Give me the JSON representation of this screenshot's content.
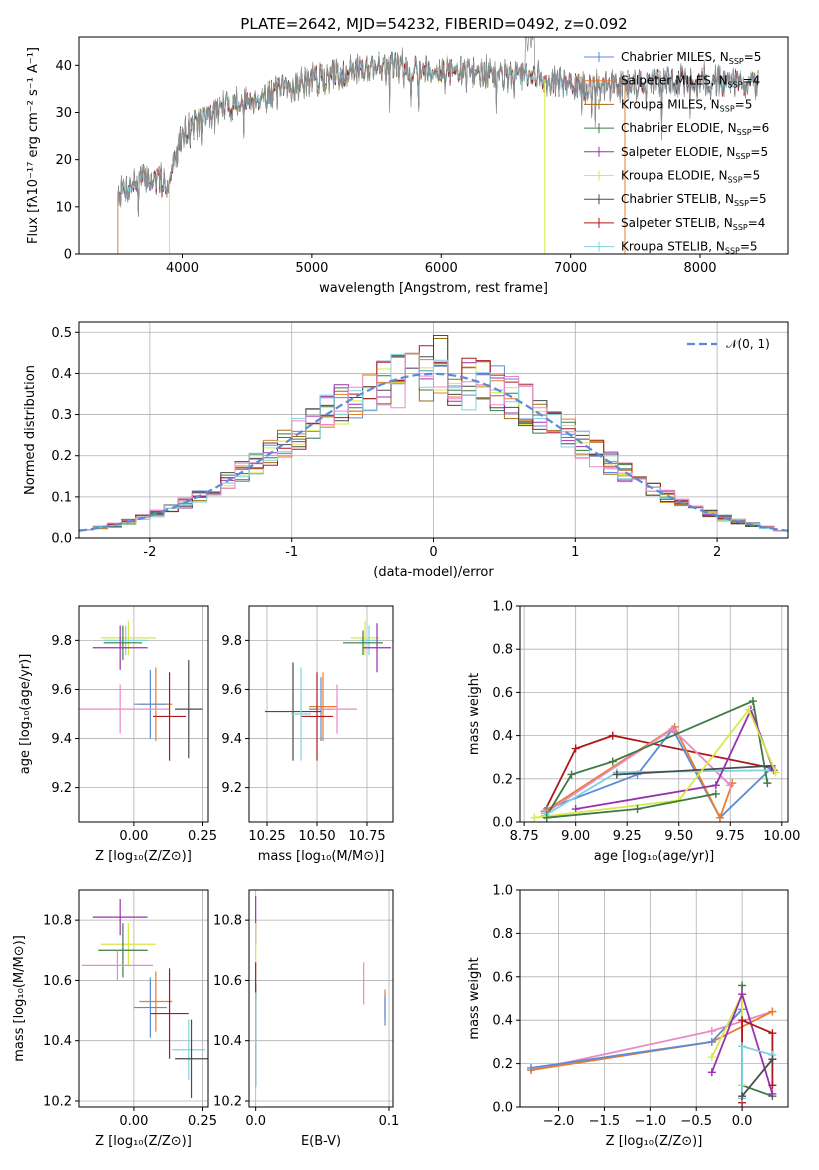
{
  "title": "PLATE=2642, MJD=54232, FIBERID=0492, z=0.092",
  "colors": {
    "Chabrier MILES": "#5b8bd6",
    "Salpeter MILES": "#e87f2a",
    "Kroupa MILES": "#a06a12",
    "Chabrier ELODIE": "#3d7a45",
    "Salpeter ELODIE": "#9a30b0",
    "Kroupa ELODIE": "#d8e84a",
    "Chabrier STELIB": "#4a4a4a",
    "Salpeter STELIB": "#b01818",
    "Kroupa STELIB": "#7fd2e0",
    "Pink (extra)": "#e88ac8",
    "Normal": "#5b8bd6"
  },
  "chart_data": [
    {
      "id": "spectrum",
      "type": "line",
      "xlabel": "wavelength [Angstrom, rest frame]",
      "ylabel": "Flux [fλ10⁻¹⁷ erg cm⁻² s⁻¹ A⁻¹]",
      "xlim": [
        3200,
        8680
      ],
      "ylim": [
        0,
        46
      ],
      "xticks": [
        4000,
        5000,
        6000,
        7000,
        8000
      ],
      "yticks": [
        0,
        10,
        20,
        30,
        40
      ],
      "legend_position": "top-right",
      "legend": [
        {
          "label": "Chabrier MILES, N",
          "sub": "SSP",
          "suffix": "=5",
          "color": "#5b8bd6"
        },
        {
          "label": "Salpeter MILES, N",
          "sub": "SSP",
          "suffix": "=4",
          "color": "#e87f2a"
        },
        {
          "label": "Kroupa MILES, N",
          "sub": "SSP",
          "suffix": "=5",
          "color": "#a06a12"
        },
        {
          "label": "Chabrier ELODIE, N",
          "sub": "SSP",
          "suffix": "=6",
          "color": "#3d7a45"
        },
        {
          "label": "Salpeter ELODIE, N",
          "sub": "SSP",
          "suffix": "=5",
          "color": "#9a30b0"
        },
        {
          "label": "Kroupa ELODIE, N",
          "sub": "SSP",
          "suffix": "=5",
          "color": "#d8e84a"
        },
        {
          "label": "Chabrier STELIB, N",
          "sub": "SSP",
          "suffix": "=5",
          "color": "#4a4a4a"
        },
        {
          "label": "Salpeter STELIB, N",
          "sub": "SSP",
          "suffix": "=4",
          "color": "#b01818"
        },
        {
          "label": "Kroupa STELIB, N",
          "sub": "SSP",
          "suffix": "=5",
          "color": "#7fd2e0"
        }
      ],
      "data_range": [
        3500,
        8450
      ],
      "continuum": [
        [
          3500,
          13
        ],
        [
          3700,
          16
        ],
        [
          3900,
          15
        ],
        [
          4000,
          26
        ],
        [
          4300,
          31
        ],
        [
          4700,
          34
        ],
        [
          5000,
          37
        ],
        [
          5500,
          40
        ],
        [
          6000,
          39
        ],
        [
          6500,
          38
        ],
        [
          6800,
          37
        ],
        [
          7100,
          35
        ],
        [
          7400,
          36
        ],
        [
          8000,
          37
        ],
        [
          8450,
          36
        ]
      ],
      "cutoffs": [
        {
          "x": 3500,
          "model": "Salpeter MILES"
        },
        {
          "x": 3900,
          "model": "Kroupa ELODIE"
        },
        {
          "x": 6800,
          "model": "Kroupa ELODIE"
        },
        {
          "x": 7420,
          "model": "Salpeter MILES"
        }
      ]
    },
    {
      "id": "residuals",
      "type": "histogram",
      "xlabel": "(data-model)/error",
      "ylabel": "Normed distribution",
      "xlim": [
        -2.5,
        2.5
      ],
      "ylim": [
        0,
        0.525
      ],
      "xticks": [
        -2,
        -1,
        0,
        1,
        2
      ],
      "yticks": [
        0.0,
        0.1,
        0.2,
        0.3,
        0.4,
        0.5
      ],
      "legend_position": "top-right",
      "normal_label": "𝒩(0, 1)",
      "bin_width": 0.1,
      "peak": 0.5
    },
    {
      "id": "age-vs-Z",
      "type": "errorbar",
      "xlabel": "Z [log₁₀(Z/Z⊙)]",
      "ylabel": "age  [log₁₀(age/yr)]",
      "xlim": [
        -0.2,
        0.27
      ],
      "ylim": [
        9.06,
        9.94
      ],
      "xticks": [
        0.0,
        0.25
      ],
      "xtick_labels": [
        "0.00",
        "0.25"
      ],
      "yticks": [
        9.2,
        9.4,
        9.6,
        9.8
      ],
      "points": [
        {
          "x": -0.02,
          "y": 9.81,
          "ex": 0.1,
          "ey": 0.07,
          "c": "#d8e84a"
        },
        {
          "x": -0.03,
          "y": 9.8,
          "ex": 0.08,
          "ey": 0.06,
          "c": "#7fd2e0"
        },
        {
          "x": -0.04,
          "y": 9.79,
          "ex": 0.07,
          "ey": 0.07,
          "c": "#3d7a45"
        },
        {
          "x": -0.05,
          "y": 9.77,
          "ex": 0.1,
          "ey": 0.09,
          "c": "#9a30b0"
        },
        {
          "x": 0.08,
          "y": 9.54,
          "ex": 0.06,
          "ey": 0.15,
          "c": "#e87f2a"
        },
        {
          "x": 0.06,
          "y": 9.54,
          "ex": 0.06,
          "ey": 0.14,
          "c": "#5b8bd6"
        },
        {
          "x": -0.05,
          "y": 9.52,
          "ex": 0.18,
          "ey": 0.1,
          "c": "#e88ac8"
        },
        {
          "x": 0.13,
          "y": 9.49,
          "ex": 0.06,
          "ey": 0.18,
          "c": "#b01818"
        },
        {
          "x": 0.2,
          "y": 9.52,
          "ex": 0.05,
          "ey": 0.2,
          "c": "#4a4a4a"
        }
      ]
    },
    {
      "id": "age-vs-mass",
      "type": "errorbar",
      "xlabel": "mass [log₁₀(M/M⊙)]",
      "ylabel": "",
      "xlim": [
        10.16,
        10.88
      ],
      "ylim": [
        9.06,
        9.94
      ],
      "xticks": [
        10.25,
        10.5,
        10.75
      ],
      "xtick_labels": [
        "10.25",
        "10.50",
        "10.75"
      ],
      "yticks": [
        9.2,
        9.4,
        9.6,
        9.8
      ],
      "points": [
        {
          "x": 10.74,
          "y": 9.81,
          "ex": 0.07,
          "ey": 0.07,
          "c": "#d8e84a"
        },
        {
          "x": 10.76,
          "y": 9.8,
          "ex": 0.05,
          "ey": 0.06,
          "c": "#7fd2e0"
        },
        {
          "x": 10.73,
          "y": 9.79,
          "ex": 0.1,
          "ey": 0.05,
          "c": "#3d7a45"
        },
        {
          "x": 10.8,
          "y": 9.77,
          "ex": 0.07,
          "ey": 0.1,
          "c": "#9a30b0"
        },
        {
          "x": 10.53,
          "y": 9.53,
          "ex": 0.07,
          "ey": 0.14,
          "c": "#e87f2a"
        },
        {
          "x": 10.52,
          "y": 9.52,
          "ex": 0.06,
          "ey": 0.13,
          "c": "#5b8bd6"
        },
        {
          "x": 10.6,
          "y": 9.52,
          "ex": 0.1,
          "ey": 0.1,
          "c": "#e88ac8"
        },
        {
          "x": 10.5,
          "y": 9.49,
          "ex": 0.08,
          "ey": 0.18,
          "c": "#b01818"
        },
        {
          "x": 10.38,
          "y": 9.51,
          "ex": 0.14,
          "ey": 0.2,
          "c": "#4a4a4a"
        },
        {
          "x": 10.42,
          "y": 9.5,
          "ex": 0.05,
          "ey": 0.19,
          "c": "#7fd2e0"
        }
      ]
    },
    {
      "id": "weight-vs-age",
      "type": "line",
      "xlabel": "age  [log₁₀(age/yr)]",
      "ylabel": "mass weight",
      "xlim": [
        8.73,
        10.03
      ],
      "ylim": [
        0,
        1
      ],
      "xticks": [
        8.75,
        9.0,
        9.25,
        9.5,
        9.75,
        10.0
      ],
      "xtick_labels": [
        "8.75",
        "9.00",
        "9.25",
        "9.50",
        "9.75",
        "10.00"
      ],
      "yticks": [
        0.0,
        0.2,
        0.4,
        0.6,
        0.8,
        1.0
      ],
      "series": [
        {
          "c": "#b01818",
          "pts": [
            [
              8.85,
              0.05
            ],
            [
              9.0,
              0.34
            ],
            [
              9.18,
              0.4
            ],
            [
              9.95,
              0.25
            ]
          ]
        },
        {
          "c": "#5b8bd6",
          "pts": [
            [
              8.86,
              0.06
            ],
            [
              9.3,
              0.22
            ],
            [
              9.47,
              0.43
            ],
            [
              9.7,
              0.02
            ],
            [
              9.95,
              0.25
            ]
          ]
        },
        {
          "c": "#e87f2a",
          "pts": [
            [
              8.85,
              0.05
            ],
            [
              9.48,
              0.44
            ],
            [
              9.7,
              0.02
            ],
            [
              9.76,
              0.18
            ]
          ]
        },
        {
          "c": "#e88ac8",
          "pts": [
            [
              8.85,
              0.04
            ],
            [
              9.47,
              0.43
            ],
            [
              9.75,
              0.17
            ]
          ]
        },
        {
          "c": "#3d7a45",
          "pts": [
            [
              8.86,
              0.03
            ],
            [
              8.98,
              0.22
            ],
            [
              9.18,
              0.28
            ],
            [
              9.86,
              0.56
            ],
            [
              9.93,
              0.18
            ]
          ]
        },
        {
          "c": "#7fd2e0",
          "pts": [
            [
              8.85,
              0.03
            ],
            [
              9.2,
              0.23
            ],
            [
              9.96,
              0.24
            ]
          ]
        },
        {
          "c": "#4a4a4a",
          "pts": [
            [
              9.2,
              0.22
            ],
            [
              9.95,
              0.26
            ]
          ]
        },
        {
          "c": "#9a30b0",
          "pts": [
            [
              9.0,
              0.06
            ],
            [
              9.68,
              0.17
            ],
            [
              9.85,
              0.52
            ],
            [
              9.96,
              0.24
            ]
          ]
        },
        {
          "c": "#d8e84a",
          "pts": [
            [
              8.8,
              0.02
            ],
            [
              9.5,
              0.1
            ],
            [
              9.84,
              0.52
            ],
            [
              9.97,
              0.23
            ]
          ]
        },
        {
          "c": "#3d7a45",
          "pts": [
            [
              8.86,
              0.02
            ],
            [
              9.3,
              0.06
            ],
            [
              9.68,
              0.13
            ]
          ]
        }
      ]
    },
    {
      "id": "mass-vs-Z",
      "type": "errorbar",
      "xlabel": "Z [log₁₀(Z/Z⊙)]",
      "ylabel": "mass [log₁₀(M/M⊙)]",
      "xlim": [
        -0.2,
        0.27
      ],
      "ylim": [
        10.18,
        10.9
      ],
      "xticks": [
        0.0,
        0.25
      ],
      "xtick_labels": [
        "0.00",
        "0.25"
      ],
      "yticks": [
        10.2,
        10.4,
        10.6,
        10.8
      ],
      "points": [
        {
          "x": -0.05,
          "y": 10.81,
          "ex": 0.1,
          "ey": 0.06,
          "c": "#9a30b0"
        },
        {
          "x": -0.02,
          "y": 10.72,
          "ex": 0.1,
          "ey": 0.07,
          "c": "#d8e84a"
        },
        {
          "x": -0.04,
          "y": 10.7,
          "ex": 0.09,
          "ey": 0.09,
          "c": "#3d7a45"
        },
        {
          "x": -0.06,
          "y": 10.65,
          "ex": 0.13,
          "ey": 0.05,
          "c": "#e88ac8"
        },
        {
          "x": 0.08,
          "y": 10.53,
          "ex": 0.06,
          "ey": 0.1,
          "c": "#e87f2a"
        },
        {
          "x": 0.06,
          "y": 10.51,
          "ex": 0.06,
          "ey": 0.1,
          "c": "#5b8bd6"
        },
        {
          "x": 0.13,
          "y": 10.49,
          "ex": 0.07,
          "ey": 0.15,
          "c": "#b01818"
        },
        {
          "x": 0.2,
          "y": 10.37,
          "ex": 0.06,
          "ey": 0.1,
          "c": "#7fd2e0"
        },
        {
          "x": 0.21,
          "y": 10.34,
          "ex": 0.06,
          "ey": 0.13,
          "c": "#4a4a4a"
        }
      ]
    },
    {
      "id": "mass-vs-ebv",
      "type": "errorbar",
      "xlabel": "E(B-V)",
      "ylabel": "",
      "xlim": [
        -0.005,
        0.103
      ],
      "ylim": [
        10.18,
        10.9
      ],
      "xticks": [
        0.0,
        0.1
      ],
      "xtick_labels": [
        "0.0",
        "0.1"
      ],
      "yticks": [
        10.2,
        10.4,
        10.6,
        10.8
      ],
      "points": [
        {
          "x": 0.0,
          "y": 10.8,
          "ex": 0.0,
          "ey": 0.08,
          "c": "#9a30b0"
        },
        {
          "x": 0.0,
          "y": 10.72,
          "ex": 0.0,
          "ey": 0.07,
          "c": "#d8e84a"
        },
        {
          "x": 0.0,
          "y": 10.6,
          "ex": 0.0,
          "ey": 0.06,
          "c": "#b01818"
        },
        {
          "x": 0.0,
          "y": 10.42,
          "ex": 0.0,
          "ey": 0.17,
          "c": "#4a4a4a"
        },
        {
          "x": 0.0,
          "y": 10.4,
          "ex": 0.0,
          "ey": 0.16,
          "c": "#7fd2e0"
        },
        {
          "x": 0.081,
          "y": 10.59,
          "ex": 0.0,
          "ey": 0.07,
          "c": "#e88ac8"
        },
        {
          "x": 0.097,
          "y": 10.52,
          "ex": 0.0,
          "ey": 0.05,
          "c": "#e87f2a"
        },
        {
          "x": 0.097,
          "y": 10.5,
          "ex": 0.0,
          "ey": 0.05,
          "c": "#5b8bd6"
        }
      ]
    },
    {
      "id": "weight-vs-Z",
      "type": "line",
      "xlabel": "Z [log₁₀(Z/Z⊙)]",
      "ylabel": "mass weight",
      "xlim": [
        -2.42,
        0.5
      ],
      "ylim": [
        0,
        1
      ],
      "xticks": [
        -2.0,
        -1.5,
        -1.0,
        -0.5,
        0.0
      ],
      "xtick_labels": [
        "−2.0",
        "−1.5",
        "−1.0",
        "−0.5",
        "0.0"
      ],
      "yticks": [
        0.0,
        0.2,
        0.4,
        0.6,
        0.8,
        1.0
      ],
      "series": [
        {
          "c": "#e88ac8",
          "pts": [
            [
              -2.3,
              0.17
            ],
            [
              -0.33,
              0.35
            ],
            [
              0.33,
              0.44
            ]
          ]
        },
        {
          "c": "#e87f2a",
          "pts": [
            [
              -2.3,
              0.17
            ],
            [
              -0.33,
              0.3
            ],
            [
              0.33,
              0.44
            ]
          ]
        },
        {
          "c": "#5b8bd6",
          "pts": [
            [
              -2.3,
              0.18
            ],
            [
              -0.33,
              0.3
            ],
            [
              0.0,
              0.45
            ]
          ]
        },
        {
          "c": "#3d7a45",
          "pts": [
            [
              0.0,
              0.56
            ],
            [
              0.0,
              0.1
            ],
            [
              0.33,
              0.05
            ]
          ]
        },
        {
          "c": "#d8e84a",
          "pts": [
            [
              -0.33,
              0.23
            ],
            [
              0.0,
              0.52
            ],
            [
              0.0,
              0.1
            ]
          ]
        },
        {
          "c": "#9a30b0",
          "pts": [
            [
              -0.33,
              0.16
            ],
            [
              0.0,
              0.52
            ],
            [
              0.33,
              0.06
            ]
          ]
        },
        {
          "c": "#b01818",
          "pts": [
            [
              0.0,
              0.02
            ],
            [
              0.0,
              0.4
            ],
            [
              0.33,
              0.34
            ],
            [
              0.33,
              0.1
            ]
          ]
        },
        {
          "c": "#7fd2e0",
          "pts": [
            [
              0.0,
              0.04
            ],
            [
              0.0,
              0.28
            ],
            [
              0.33,
              0.24
            ]
          ]
        },
        {
          "c": "#4a4a4a",
          "pts": [
            [
              0.0,
              0.05
            ],
            [
              0.33,
              0.22
            ]
          ]
        }
      ]
    }
  ]
}
